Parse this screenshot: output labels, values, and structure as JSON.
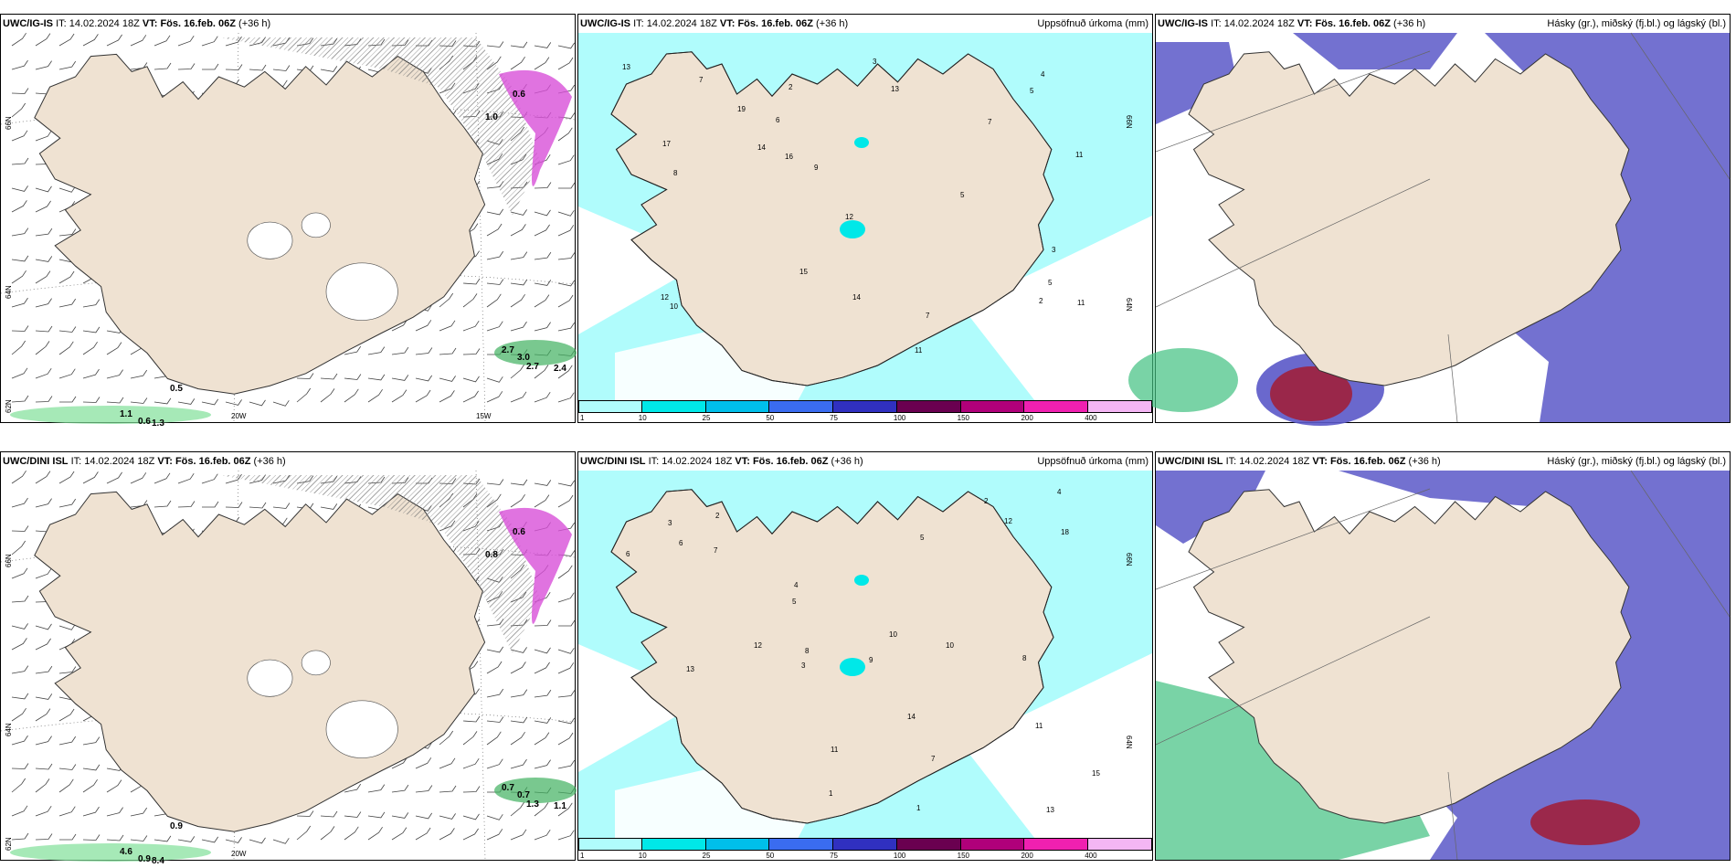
{
  "top_row": {
    "wind": {
      "model": "UWC/IG-IS",
      "it_label": "IT:",
      "it_value": "14.02.2024 18Z",
      "vt_label": "VT:",
      "vt_value": "Fös. 16.feb. 06Z",
      "lead": "(+36 h)",
      "lat_labels": [
        "66N",
        "64N",
        "62N"
      ],
      "lon_labels": [
        "20W",
        "15W"
      ],
      "values": [
        "0.6",
        "1.0",
        "0.5",
        "1.1",
        "0.6",
        "1.3",
        "2.7",
        "3.0",
        "2.7",
        "2.4"
      ]
    },
    "precip": {
      "model": "UWC/IG-IS",
      "it_label": "IT:",
      "it_value": "14.02.2024 18Z",
      "vt_label": "VT:",
      "vt_value": "Fös. 16.feb. 06Z",
      "lead": "(+36 h)",
      "title_right": "Uppsöfnuð úrkoma (mm)",
      "lat_labels": [
        "66N",
        "64N"
      ]
    },
    "cloud": {
      "model": "UWC/IG-IS",
      "it_label": "IT:",
      "it_value": "14.02.2024 18Z",
      "vt_label": "VT:",
      "vt_value": "Fös. 16.feb. 06Z",
      "lead": "(+36 h)",
      "title_right": "Hásky (gr.), miðský (fj.bl.) og lágský (bl.)"
    }
  },
  "bottom_row": {
    "wind": {
      "model": "UWC/DINI ISL",
      "it_label": "IT:",
      "it_value": "14.02.2024 18Z",
      "vt_label": "VT:",
      "vt_value": "Fös. 16.feb. 06Z",
      "lead": "(+36 h)",
      "lat_labels": [
        "66N",
        "64N",
        "62N"
      ],
      "lon_labels": [
        "20W"
      ],
      "values": [
        "0.6",
        "0.8",
        "0.9",
        "4.6",
        "0.9",
        "8.4",
        "0.7",
        "0.7",
        "1.3",
        "1.1"
      ]
    },
    "precip": {
      "model": "UWC/DINI ISL",
      "it_label": "IT:",
      "it_value": "14.02.2024 18Z",
      "vt_label": "VT:",
      "vt_value": "Fös. 16.feb. 06Z",
      "lead": "(+36 h)",
      "title_right": "Uppsöfnuð úrkoma (mm)",
      "lat_labels": [
        "66N",
        "64N"
      ]
    },
    "cloud": {
      "model": "UWC/DINI ISL",
      "it_label": "IT:",
      "it_value": "14.02.2024 18Z",
      "vt_label": "VT:",
      "vt_value": "Fös. 16.feb. 06Z",
      "lead": "(+36 h)",
      "title_right": "Háský (gr.), miðský (fj.bl.) og lágský (bl.)"
    }
  },
  "precip_colorbar": {
    "ticks": [
      "1",
      "10",
      "25",
      "50",
      "75",
      "100",
      "150",
      "200",
      "400"
    ],
    "colors": [
      "#b0fcfc",
      "#00e8e8",
      "#00bfea",
      "#3a6cf0",
      "#3030c0",
      "#6a0050",
      "#b0007a",
      "#f020b0",
      "#f4b6f4"
    ]
  },
  "precip_values": {
    "top": [
      "2",
      "3",
      "12",
      "11",
      "7",
      "5",
      "13",
      "15",
      "14",
      "12",
      "8",
      "5",
      "7",
      "4",
      "10",
      "19",
      "11",
      "3",
      "6",
      "2",
      "11",
      "9",
      "17",
      "16",
      "14",
      "5",
      "7",
      "13"
    ],
    "bottom": [
      "2",
      "4",
      "13",
      "12",
      "7",
      "10",
      "5",
      "8",
      "15",
      "11",
      "6",
      "3",
      "9",
      "13",
      "12",
      "14",
      "5",
      "7",
      "10",
      "4",
      "1",
      "2",
      "3",
      "6",
      "8",
      "11",
      "1",
      "18"
    ]
  },
  "colors": {
    "land": "#efe2d2",
    "precip_light": "#b0fcfc",
    "precip_mid": "#00e8e8",
    "cloud_high": "#5a58c8",
    "cloud_mid_green": "#40c080",
    "cloud_low_red": "#a0203c",
    "icing_magenta": "#d850d8",
    "green_precip": "#80e098"
  }
}
